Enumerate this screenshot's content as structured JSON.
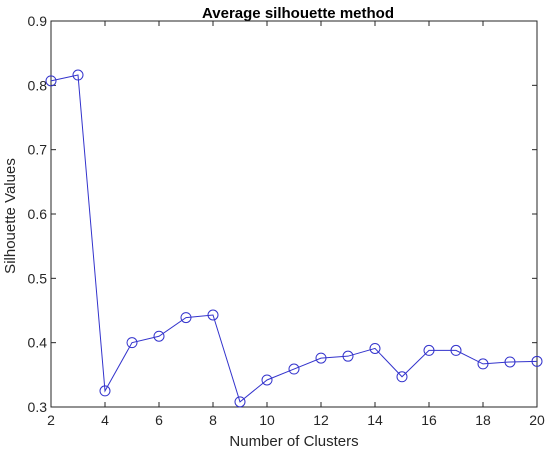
{
  "chart_data": {
    "type": "line",
    "title": "Average silhouette method",
    "xlabel": "Number of Clusters",
    "ylabel": "Silhouette Values",
    "xlim": [
      2,
      20
    ],
    "ylim": [
      0.3,
      0.9
    ],
    "xticks": [
      2,
      4,
      6,
      8,
      10,
      12,
      14,
      16,
      18,
      20
    ],
    "yticks": [
      0.3,
      0.4,
      0.5,
      0.6,
      0.7,
      0.8,
      0.9
    ],
    "xtick_labels": [
      "2",
      "4",
      "6",
      "8",
      "10",
      "12",
      "14",
      "16",
      "18",
      "20"
    ],
    "ytick_labels": [
      "0.3",
      "0.4",
      "0.5",
      "0.6",
      "0.7",
      "0.8",
      "0.9"
    ],
    "grid": false,
    "series": [
      {
        "color": "#3333cc",
        "marker": "circle",
        "x": [
          2,
          3,
          4,
          5,
          6,
          7,
          8,
          9,
          10,
          11,
          12,
          13,
          14,
          15,
          16,
          17,
          18,
          19,
          20
        ],
        "y": [
          0.807,
          0.816,
          0.325,
          0.4,
          0.41,
          0.439,
          0.443,
          0.308,
          0.342,
          0.359,
          0.376,
          0.379,
          0.391,
          0.347,
          0.388,
          0.388,
          0.367,
          0.37,
          0.371
        ]
      }
    ]
  }
}
